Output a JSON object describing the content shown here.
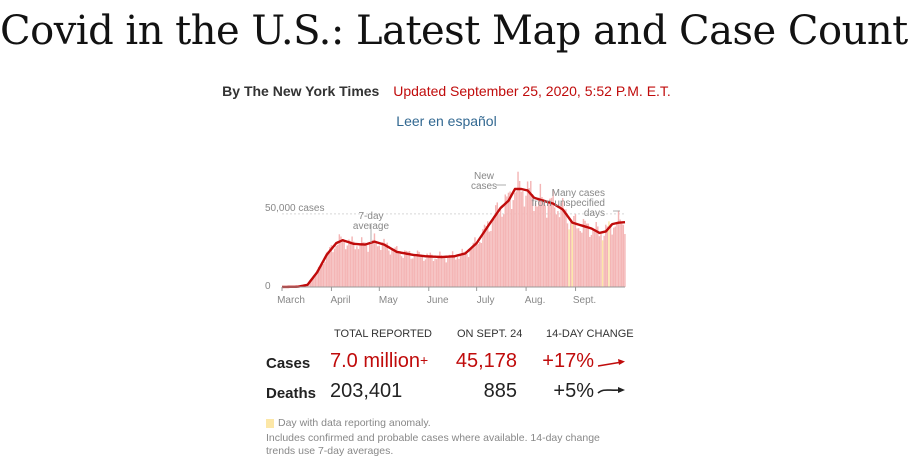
{
  "headline": "Covid in the U.S.: Latest Map and Case Count",
  "byline": "By The New York Times",
  "updated": "Updated September 25, 2020, 5:52 P.M. E.T.",
  "spanish_link": "Leer en español",
  "colors": {
    "accent_red": "#c00b0b",
    "bar_pink": "#f4b5b5",
    "anomaly_yellow": "#fce7a7",
    "link_blue": "#326891"
  },
  "chart_data": {
    "type": "bar",
    "title": "",
    "xlabel": "",
    "ylabel": "",
    "ylim": [
      0,
      80000
    ],
    "y_ticks": [
      {
        "value": 50000,
        "label": "50,000 cases"
      },
      {
        "value": 0,
        "label": "0"
      }
    ],
    "x_ticks": [
      {
        "day": 0,
        "label": "March"
      },
      {
        "day": 31,
        "label": "April"
      },
      {
        "day": 61,
        "label": "May"
      },
      {
        "day": 92,
        "label": "June"
      },
      {
        "day": 122,
        "label": "July"
      },
      {
        "day": 153,
        "label": "Aug."
      },
      {
        "day": 184,
        "label": "Sept."
      }
    ],
    "series": [
      {
        "name": "Daily new cases",
        "kind": "bar"
      },
      {
        "name": "7-day average",
        "kind": "line"
      }
    ],
    "avg_keypoints": [
      [
        0,
        0
      ],
      [
        10,
        200
      ],
      [
        16,
        1500
      ],
      [
        22,
        10000
      ],
      [
        28,
        22000
      ],
      [
        34,
        30000
      ],
      [
        38,
        32000
      ],
      [
        45,
        29500
      ],
      [
        52,
        29000
      ],
      [
        58,
        31000
      ],
      [
        64,
        29000
      ],
      [
        72,
        24000
      ],
      [
        82,
        22000
      ],
      [
        90,
        21000
      ],
      [
        100,
        20500
      ],
      [
        108,
        21000
      ],
      [
        115,
        23000
      ],
      [
        122,
        30000
      ],
      [
        130,
        43000
      ],
      [
        137,
        54000
      ],
      [
        142,
        59000
      ],
      [
        146,
        67000
      ],
      [
        150,
        67000
      ],
      [
        154,
        66000
      ],
      [
        158,
        61000
      ],
      [
        164,
        59000
      ],
      [
        170,
        57000
      ],
      [
        176,
        53000
      ],
      [
        182,
        44000
      ],
      [
        188,
        42000
      ],
      [
        194,
        40000
      ],
      [
        199,
        37000
      ],
      [
        203,
        38000
      ],
      [
        207,
        43000
      ],
      [
        211,
        44000
      ],
      [
        215,
        44300
      ]
    ],
    "anomaly_days": [
      180,
      182,
      201,
      205
    ],
    "annotations": [
      {
        "text": [
          "7-day",
          "average"
        ]
      },
      {
        "text": [
          "New",
          "cases"
        ]
      },
      {
        "text": [
          "Many cases",
          "from unspecified",
          "days"
        ]
      }
    ]
  },
  "table": {
    "headers": [
      "TOTAL REPORTED",
      "ON SEPT. 24",
      "14-DAY CHANGE"
    ],
    "rows": [
      {
        "label": "Cases",
        "total": "7.0 million",
        "total_suffix": "+",
        "day": "45,178",
        "change": "+17%",
        "trend": "up"
      },
      {
        "label": "Deaths",
        "total": "203,401",
        "total_suffix": "",
        "day": "885",
        "change": "+5%",
        "trend": "flat-up"
      }
    ]
  },
  "legend": {
    "anomaly": "Day with data reporting anomaly."
  },
  "notes": [
    "Includes confirmed and probable cases where available. 14-day change",
    "trends use 7-day averages."
  ]
}
